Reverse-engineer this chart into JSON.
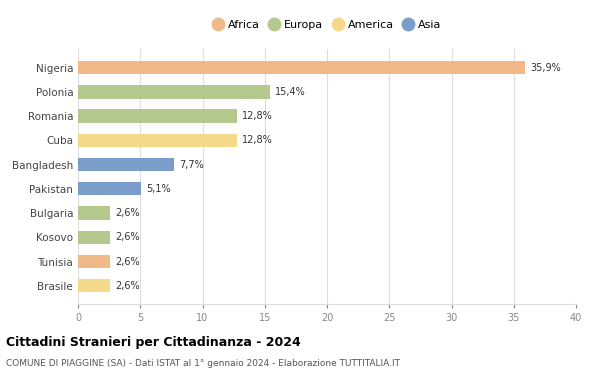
{
  "countries": [
    "Nigeria",
    "Polonia",
    "Romania",
    "Cuba",
    "Bangladesh",
    "Pakistan",
    "Bulgaria",
    "Kosovo",
    "Tunisia",
    "Brasile"
  ],
  "values": [
    35.9,
    15.4,
    12.8,
    12.8,
    7.7,
    5.1,
    2.6,
    2.6,
    2.6,
    2.6
  ],
  "labels": [
    "35,9%",
    "15,4%",
    "12,8%",
    "12,8%",
    "7,7%",
    "5,1%",
    "2,6%",
    "2,6%",
    "2,6%",
    "2,6%"
  ],
  "colors": [
    "#F0B987",
    "#B5C98E",
    "#B5C98E",
    "#F5D98B",
    "#7B9DC9",
    "#7B9DC9",
    "#B5C98E",
    "#B5C98E",
    "#F0B987",
    "#F5D98B"
  ],
  "legend_labels": [
    "Africa",
    "Europa",
    "America",
    "Asia"
  ],
  "legend_colors": [
    "#F0B987",
    "#B5C98E",
    "#F5D98B",
    "#7B9DC9"
  ],
  "title": "Cittadini Stranieri per Cittadinanza - 2024",
  "subtitle": "COMUNE DI PIAGGINE (SA) - Dati ISTAT al 1° gennaio 2024 - Elaborazione TUTTITALIA.IT",
  "xlim": [
    0,
    40
  ],
  "xticks": [
    0,
    5,
    10,
    15,
    20,
    25,
    30,
    35,
    40
  ],
  "background_color": "#ffffff",
  "grid_color": "#dddddd",
  "bar_height": 0.55
}
